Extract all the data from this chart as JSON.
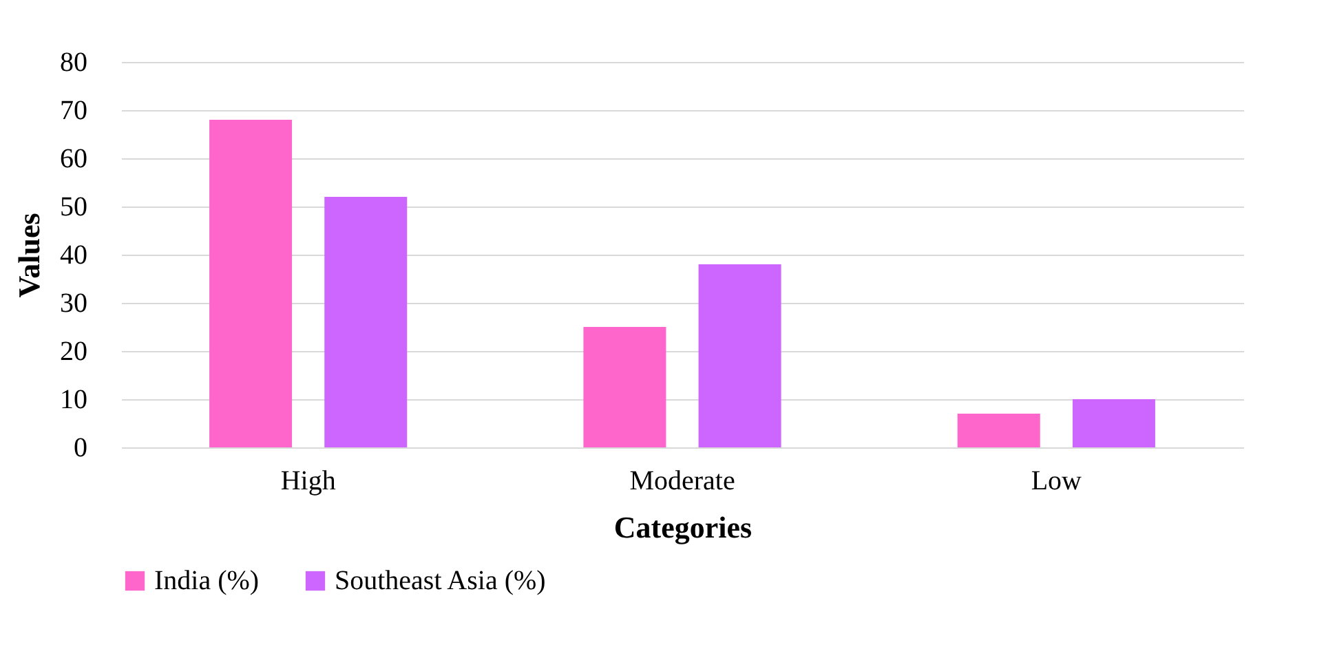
{
  "chart_data": {
    "type": "bar",
    "xlabel": "Categories",
    "ylabel": "Values",
    "categories": [
      "High",
      "Moderate",
      "Low"
    ],
    "series": [
      {
        "name": "India (%)",
        "color": "#ff66cc",
        "values": [
          68,
          25,
          7
        ]
      },
      {
        "name": "Southeast Asia (%)",
        "color": "#cc66ff",
        "values": [
          52,
          38,
          10
        ]
      }
    ],
    "ylim": [
      0,
      80
    ],
    "yticks": [
      0,
      10,
      20,
      30,
      40,
      50,
      60,
      70,
      80
    ],
    "grid": "y",
    "legend": "bottom"
  }
}
